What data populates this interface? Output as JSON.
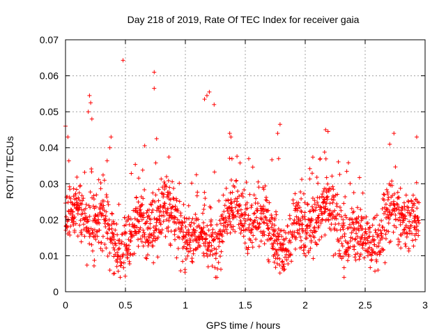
{
  "chart_data": {
    "type": "scatter",
    "title": "Day 218 of 2019, Rate Of TEC Index for receiver gaia",
    "xlabel": "GPS time / hours",
    "ylabel": "ROTI / TECUs",
    "xlim": [
      0,
      3
    ],
    "ylim": [
      0,
      0.07
    ],
    "xticks": [
      0,
      0.5,
      1,
      1.5,
      2,
      2.5,
      3
    ],
    "xtick_labels": [
      "0",
      "0.5",
      "1",
      "1.5",
      "2",
      "2.5",
      "3"
    ],
    "yticks": [
      0,
      0.01,
      0.02,
      0.03,
      0.04,
      0.05,
      0.06,
      0.07
    ],
    "ytick_labels": [
      "0",
      "0.01",
      "0.02",
      "0.03",
      "0.04",
      "0.05",
      "0.06",
      "0.07"
    ],
    "grid": true,
    "marker": "+",
    "color": "#ff0000",
    "notable_points": [
      {
        "x": 0.0,
        "y": 0.046
      },
      {
        "x": 0.02,
        "y": 0.043
      },
      {
        "x": 0.2,
        "y": 0.0545
      },
      {
        "x": 0.21,
        "y": 0.0525
      },
      {
        "x": 0.19,
        "y": 0.05
      },
      {
        "x": 0.22,
        "y": 0.048
      },
      {
        "x": 0.48,
        "y": 0.0643
      },
      {
        "x": 0.74,
        "y": 0.061
      },
      {
        "x": 0.74,
        "y": 0.0565
      },
      {
        "x": 0.76,
        "y": 0.0425
      },
      {
        "x": 1.18,
        "y": 0.0545
      },
      {
        "x": 1.2,
        "y": 0.0555
      },
      {
        "x": 1.16,
        "y": 0.0535
      },
      {
        "x": 1.24,
        "y": 0.052
      },
      {
        "x": 1.37,
        "y": 0.044
      },
      {
        "x": 1.38,
        "y": 0.043
      },
      {
        "x": 1.79,
        "y": 0.0465
      },
      {
        "x": 1.77,
        "y": 0.044
      },
      {
        "x": 2.17,
        "y": 0.045
      },
      {
        "x": 2.19,
        "y": 0.0445
      },
      {
        "x": 2.74,
        "y": 0.044
      },
      {
        "x": 2.93,
        "y": 0.043
      },
      {
        "x": 0.38,
        "y": 0.043
      },
      {
        "x": 0.37,
        "y": 0.04
      },
      {
        "x": 0.4,
        "y": 0.005
      },
      {
        "x": 0.37,
        "y": 0.006
      },
      {
        "x": 1.82,
        "y": 0.006
      }
    ],
    "series": [
      {
        "name": "ROTI",
        "density_profile": {
          "x_step": 0.0028,
          "min_hours": 0,
          "max_hours": 2.95,
          "band_low": 0.008,
          "band_high": 0.03,
          "typical": 0.018
        }
      }
    ]
  }
}
